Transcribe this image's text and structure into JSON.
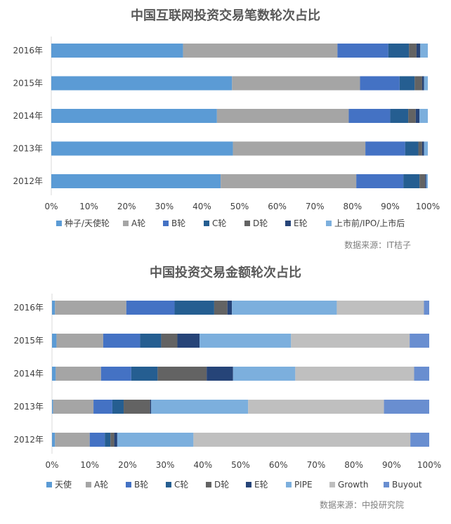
{
  "chart_data": [
    {
      "type": "bar",
      "orientation": "horizontal",
      "stacked": true,
      "percent": true,
      "title": "中国互联网投资交易笔数轮次占比",
      "categories": [
        "2016年",
        "2015年",
        "2014年",
        "2013年",
        "2012年"
      ],
      "x_ticks": [
        "0%",
        "10%",
        "20%",
        "30%",
        "40%",
        "50%",
        "60%",
        "70%",
        "80%",
        "90%",
        "100%"
      ],
      "xlim": [
        0,
        100
      ],
      "grid": false,
      "legend_position": "bottom",
      "source": "数据来源：IT桔子",
      "series": [
        {
          "name": "种子/天使轮",
          "color": "#5b9bd5",
          "values": [
            35,
            48,
            44,
            48,
            45
          ]
        },
        {
          "name": "A轮",
          "color": "#a5a5a5",
          "values": [
            41,
            34,
            35,
            35,
            36
          ]
        },
        {
          "name": "B轮",
          "color": "#4472c4",
          "values": [
            13.5,
            10.5,
            11,
            10.5,
            12.5
          ]
        },
        {
          "name": "C轮",
          "color": "#255e91",
          "values": [
            5.5,
            4,
            4.8,
            3.5,
            4.3
          ]
        },
        {
          "name": "D轮",
          "color": "#636363",
          "values": [
            2,
            2,
            2,
            1,
            1.5
          ]
        },
        {
          "name": "E轮",
          "color": "#264478",
          "values": [
            1,
            0.5,
            1,
            0.5,
            0.3
          ]
        },
        {
          "name": "上市前/IPO/上市后",
          "color": "#7cafdd",
          "values": [
            2,
            1,
            2.2,
            1,
            0.4
          ]
        }
      ]
    },
    {
      "type": "bar",
      "orientation": "horizontal",
      "stacked": true,
      "percent": true,
      "title": "中国投资交易金额轮次占比",
      "categories": [
        "2016年",
        "2015年",
        "2014年",
        "2013年",
        "2012年"
      ],
      "x_ticks": [
        "0%",
        "10%",
        "20%",
        "30%",
        "40%",
        "50%",
        "60%",
        "70%",
        "80%",
        "90%",
        "100%"
      ],
      "xlim": [
        0,
        100
      ],
      "grid": false,
      "legend_position": "bottom",
      "source": "数据来源：中投研究院",
      "series": [
        {
          "name": "天使",
          "color": "#5b9bd5",
          "values": [
            0.8,
            1.2,
            1.0,
            0.3,
            0.8
          ]
        },
        {
          "name": "A轮",
          "color": "#a5a5a5",
          "values": [
            18.9,
            12.4,
            12.0,
            10.7,
            9.2
          ]
        },
        {
          "name": "B轮",
          "color": "#4472c4",
          "values": [
            12.8,
            9.8,
            8.0,
            5.0,
            4.0
          ]
        },
        {
          "name": "C轮",
          "color": "#255e91",
          "values": [
            10.5,
            5.6,
            7.0,
            3.0,
            1.5
          ]
        },
        {
          "name": "D轮",
          "color": "#636363",
          "values": [
            3.5,
            4.3,
            13.0,
            7.0,
            1.0
          ]
        },
        {
          "name": "E轮",
          "color": "#264478",
          "values": [
            1.2,
            5.9,
            7.0,
            0.3,
            0.8
          ]
        },
        {
          "name": "PIPE",
          "color": "#7cafdd",
          "values": [
            27.8,
            24.3,
            16.5,
            25.7,
            20.2
          ]
        },
        {
          "name": "Growth",
          "color": "#bfbfbf",
          "values": [
            23.1,
            31.5,
            31.5,
            36.0,
            57.5
          ]
        },
        {
          "name": "Buyout",
          "color": "#698ed0",
          "values": [
            1.4,
            5.2,
            4.0,
            12.0,
            5.0
          ]
        }
      ]
    }
  ]
}
